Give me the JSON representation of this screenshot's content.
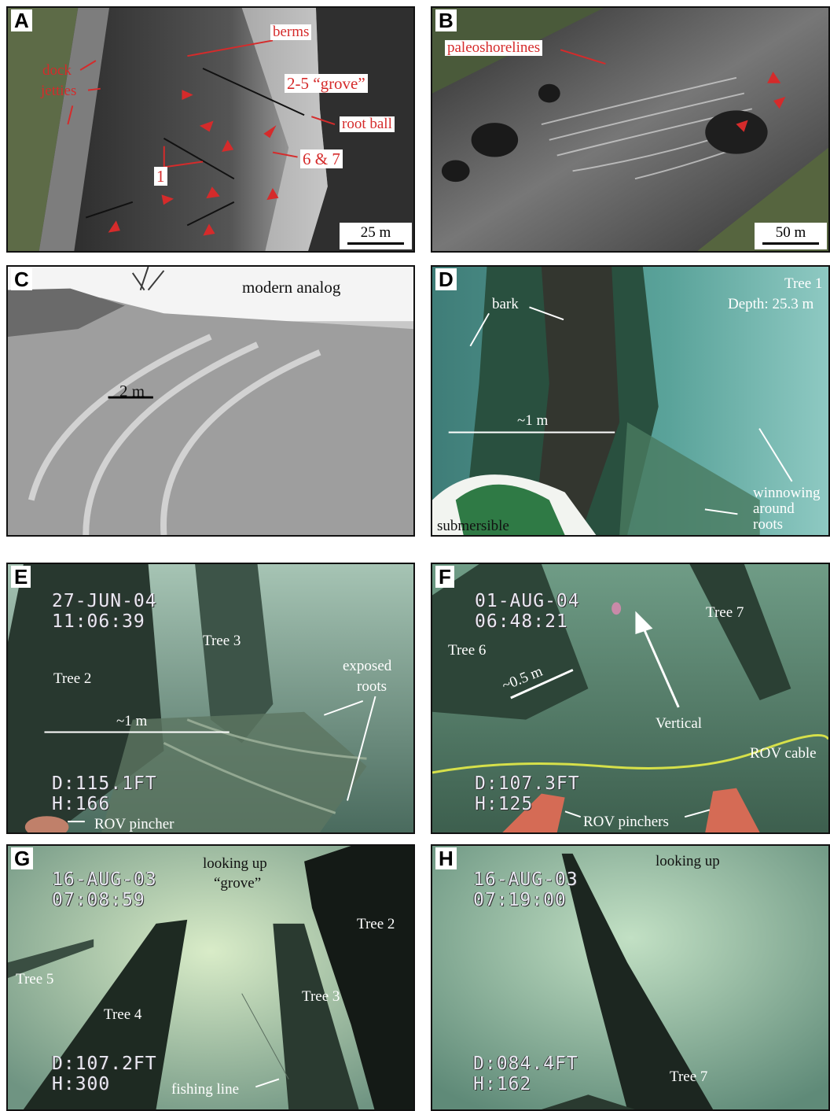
{
  "panels": {
    "A": {
      "letter": "A",
      "labels": {
        "dock": "dock",
        "jetties": "jetties",
        "berms": "berms",
        "grove": "2-5 “grove”",
        "root_ball": "root ball",
        "trees_6_7": "6 & 7",
        "tree_1": "1"
      },
      "scale": "25 m"
    },
    "B": {
      "letter": "B",
      "labels": {
        "paleoshorelines": "paleoshorelines"
      },
      "scale": "50 m"
    },
    "C": {
      "letter": "C",
      "labels": {
        "modern_analog": "modern analog",
        "scale": "2 m"
      }
    },
    "D": {
      "letter": "D",
      "labels": {
        "bark": "bark",
        "tree": "Tree 1",
        "depth": "Depth: 25.3 m",
        "scale": "~1 m",
        "winnowing_1": "winnowing",
        "winnowing_2": "around",
        "winnowing_3": "roots",
        "submersible": "submersible"
      }
    },
    "E": {
      "letter": "E",
      "osd_date": "27-JUN-04",
      "osd_time": "11:06:39",
      "osd_depth": "D:115.1FT",
      "osd_heading": "H:166",
      "labels": {
        "tree_3": "Tree 3",
        "tree_2": "Tree 2",
        "exposed_1": "exposed",
        "exposed_2": "roots",
        "scale": "~1 m",
        "pincher": "ROV pincher"
      }
    },
    "F": {
      "letter": "F",
      "osd_date": "01-AUG-04",
      "osd_time": "06:48:21",
      "osd_depth": "D:107.3FT",
      "osd_heading": "H:125",
      "labels": {
        "tree_7": "Tree 7",
        "tree_6": "Tree 6",
        "scale": "~0.5 m",
        "vertical": "Vertical",
        "cable": "ROV cable",
        "pinchers": "ROV pinchers"
      }
    },
    "G": {
      "letter": "G",
      "osd_date": "16-AUG-03",
      "osd_time": "07:08:59",
      "osd_depth": "D:107.2FT",
      "osd_heading": "H:300",
      "labels": {
        "looking_up": "looking up",
        "grove": "“grove”",
        "tree_2": "Tree 2",
        "tree_5": "Tree 5",
        "tree_3": "Tree 3",
        "tree_4": "Tree 4",
        "fishing_line": "fishing line"
      }
    },
    "H": {
      "letter": "H",
      "osd_date": "16-AUG-03",
      "osd_time": "07:19:00",
      "osd_depth": "D:084.4FT",
      "osd_heading": "H:162",
      "labels": {
        "looking_up": "looking up",
        "tree_7": "Tree 7"
      }
    }
  },
  "colors": {
    "annotation_red": "#d52b2b",
    "underwater_green": "#6f9c86"
  }
}
